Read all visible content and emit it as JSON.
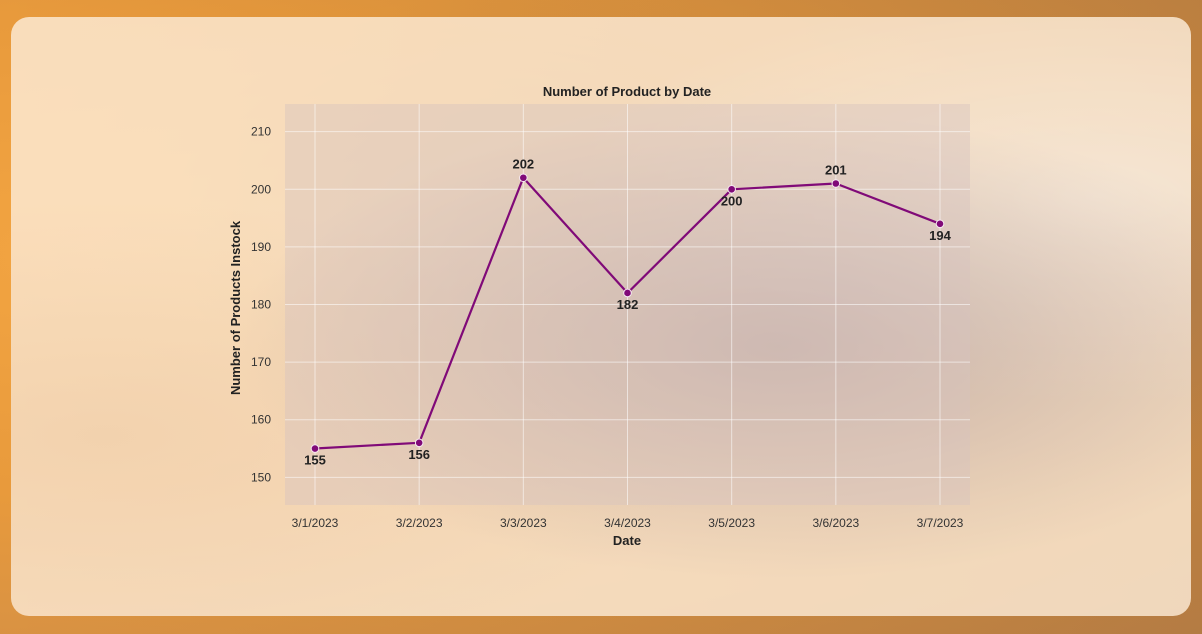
{
  "chart_data": {
    "type": "line",
    "title": "Number of Product by Date",
    "xlabel": "Date",
    "ylabel": "Number of Products Instock",
    "categories": [
      "3/1/2023",
      "3/2/2023",
      "3/3/2023",
      "3/4/2023",
      "3/5/2023",
      "3/6/2023",
      "3/7/2023"
    ],
    "values": [
      155,
      156,
      202,
      182,
      200,
      201,
      194
    ],
    "data_labels": [
      "155",
      "156",
      "202",
      "182",
      "200",
      "201",
      "194"
    ],
    "yticks": [
      150,
      160,
      170,
      180,
      190,
      200,
      210
    ],
    "ylim": [
      145.2,
      214.8
    ],
    "grid": true,
    "colors": {
      "line": "#800a78",
      "plot_bg": "rgba(215,195,190,0.45)",
      "grid": "rgba(255,255,255,0.55)"
    }
  }
}
